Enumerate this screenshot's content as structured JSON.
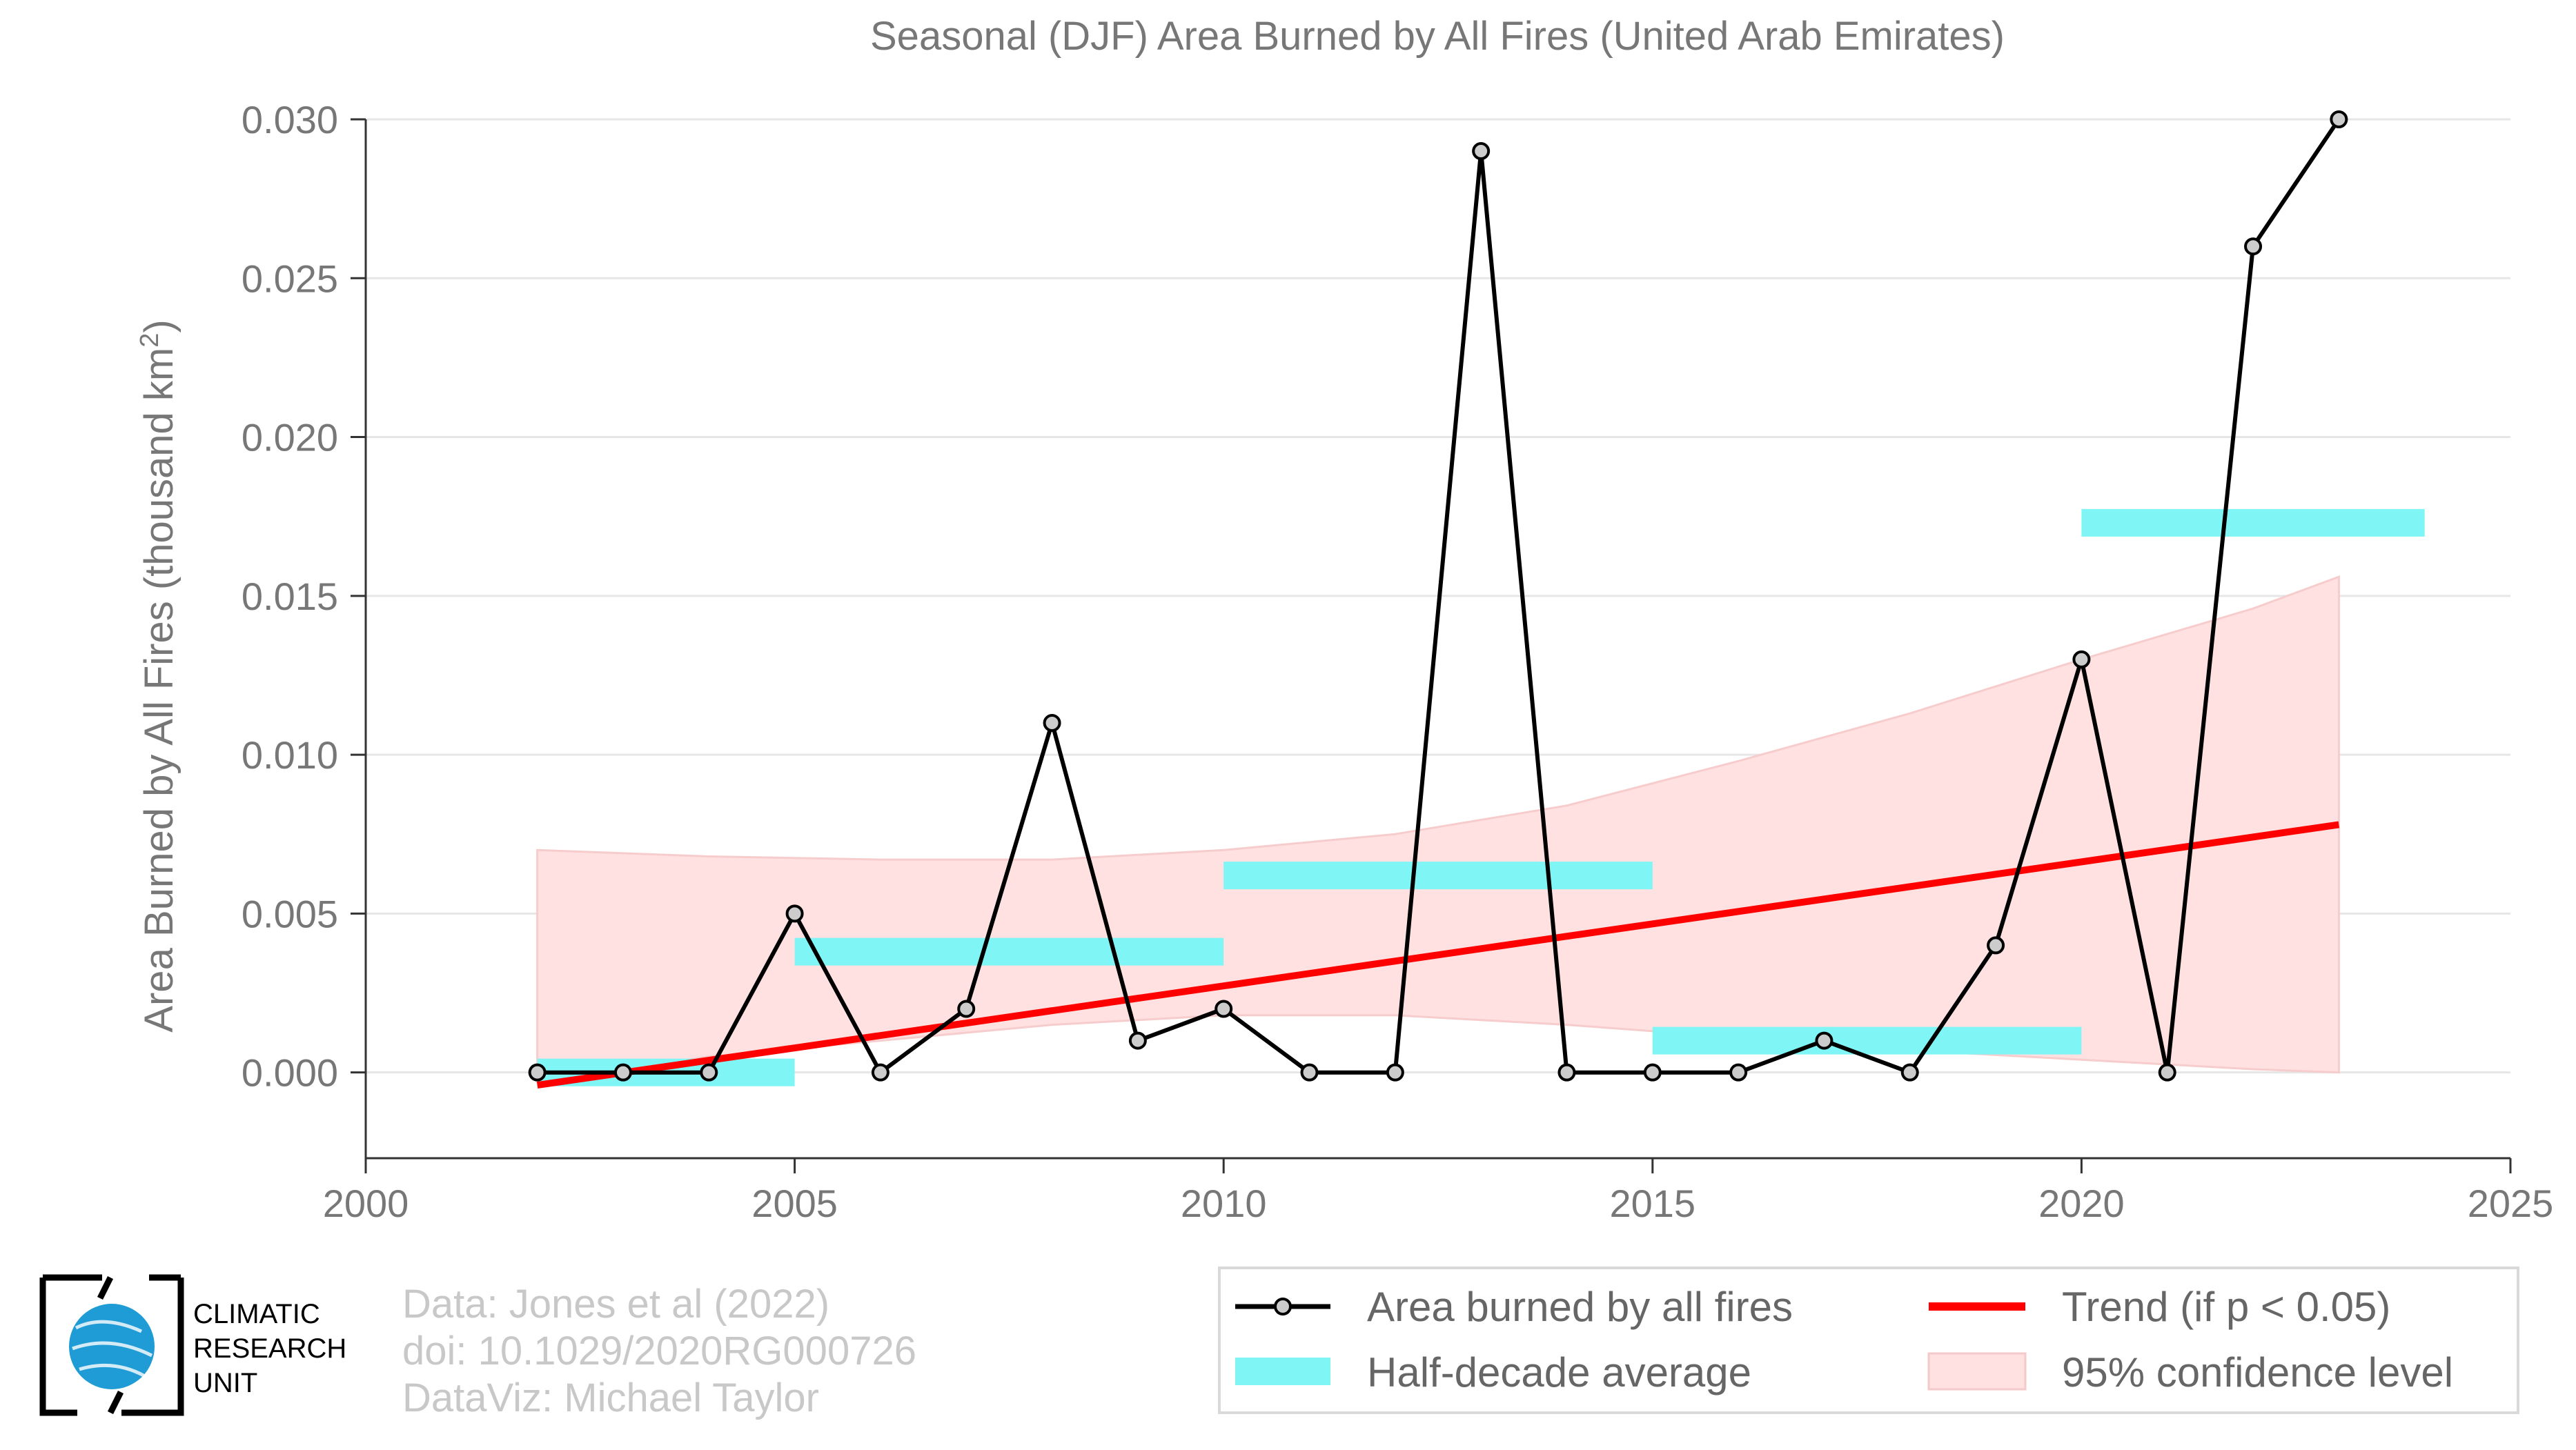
{
  "chart_data": {
    "type": "line",
    "title": "Seasonal (DJF) Area Burned by All Fires (United Arab Emirates)",
    "ylabel_main": "Area Burned by All Fires (thousand km",
    "ylabel_sup": "2",
    "ylabel_end": ")",
    "xlabel": "",
    "xlim": [
      2000,
      2025
    ],
    "ylim": [
      -0.0027,
      0.03
    ],
    "x_ticks": [
      2000,
      2005,
      2010,
      2015,
      2020,
      2025
    ],
    "y_ticks": [
      0.0,
      0.005,
      0.01,
      0.015,
      0.02,
      0.025,
      0.03
    ],
    "y_tick_labels": [
      "0.000",
      "0.005",
      "0.010",
      "0.015",
      "0.020",
      "0.025",
      "0.030"
    ],
    "grid": true,
    "legend_position": "bottom-right",
    "series": [
      {
        "name": "Area burned by all fires",
        "color": "#000000",
        "x": [
          2002,
          2003,
          2004,
          2005,
          2006,
          2007,
          2008,
          2009,
          2010,
          2011,
          2012,
          2013,
          2014,
          2015,
          2016,
          2017,
          2018,
          2019,
          2020,
          2021,
          2022,
          2023
        ],
        "y": [
          0.0,
          0.0,
          0.0,
          0.005,
          0.0,
          0.002,
          0.011,
          0.001,
          0.002,
          0.0,
          0.0,
          0.029,
          0.0,
          0.0,
          0.0,
          0.001,
          0.0,
          0.004,
          0.013,
          0.0,
          0.026,
          0.03
        ]
      }
    ],
    "half_decade_average": {
      "name": "Half-decade average",
      "color": "#7ff5f5",
      "segments": [
        {
          "x_start": 2002,
          "x_end": 2005,
          "value": 0.0
        },
        {
          "x_start": 2005,
          "x_end": 2010,
          "value": 0.0038
        },
        {
          "x_start": 2010,
          "x_end": 2015,
          "value": 0.0062
        },
        {
          "x_start": 2015,
          "x_end": 2020,
          "value": 0.001
        },
        {
          "x_start": 2020,
          "x_end": 2024,
          "value": 0.0173
        }
      ]
    },
    "trend": {
      "name": "Trend (if p < 0.05)",
      "color": "#ff0000",
      "x": [
        2002,
        2023
      ],
      "y": [
        -0.0004,
        0.0078
      ]
    },
    "confidence_band": {
      "name": "95% confidence level",
      "color": "#ffe1e1",
      "x": [
        2002,
        2004,
        2006,
        2008,
        2010,
        2012,
        2014,
        2016,
        2018,
        2020,
        2022,
        2023
      ],
      "upper": [
        0.007,
        0.0068,
        0.0067,
        0.0067,
        0.007,
        0.0075,
        0.0084,
        0.0098,
        0.0113,
        0.013,
        0.0146,
        0.0156
      ],
      "lower": [
        -0.0003,
        0.0005,
        0.001,
        0.0015,
        0.0018,
        0.0018,
        0.0015,
        0.0011,
        0.0007,
        0.0004,
        0.0001,
        0.0
      ]
    }
  },
  "credits": {
    "line1": "Data: Jones et al (2022)",
    "line2": "doi: 10.1029/2020RG000726",
    "line3": "DataViz: Michael Taylor"
  },
  "logo": {
    "line1": "CLIMATIC",
    "line2": "RESEARCH",
    "line3": "UNIT"
  }
}
